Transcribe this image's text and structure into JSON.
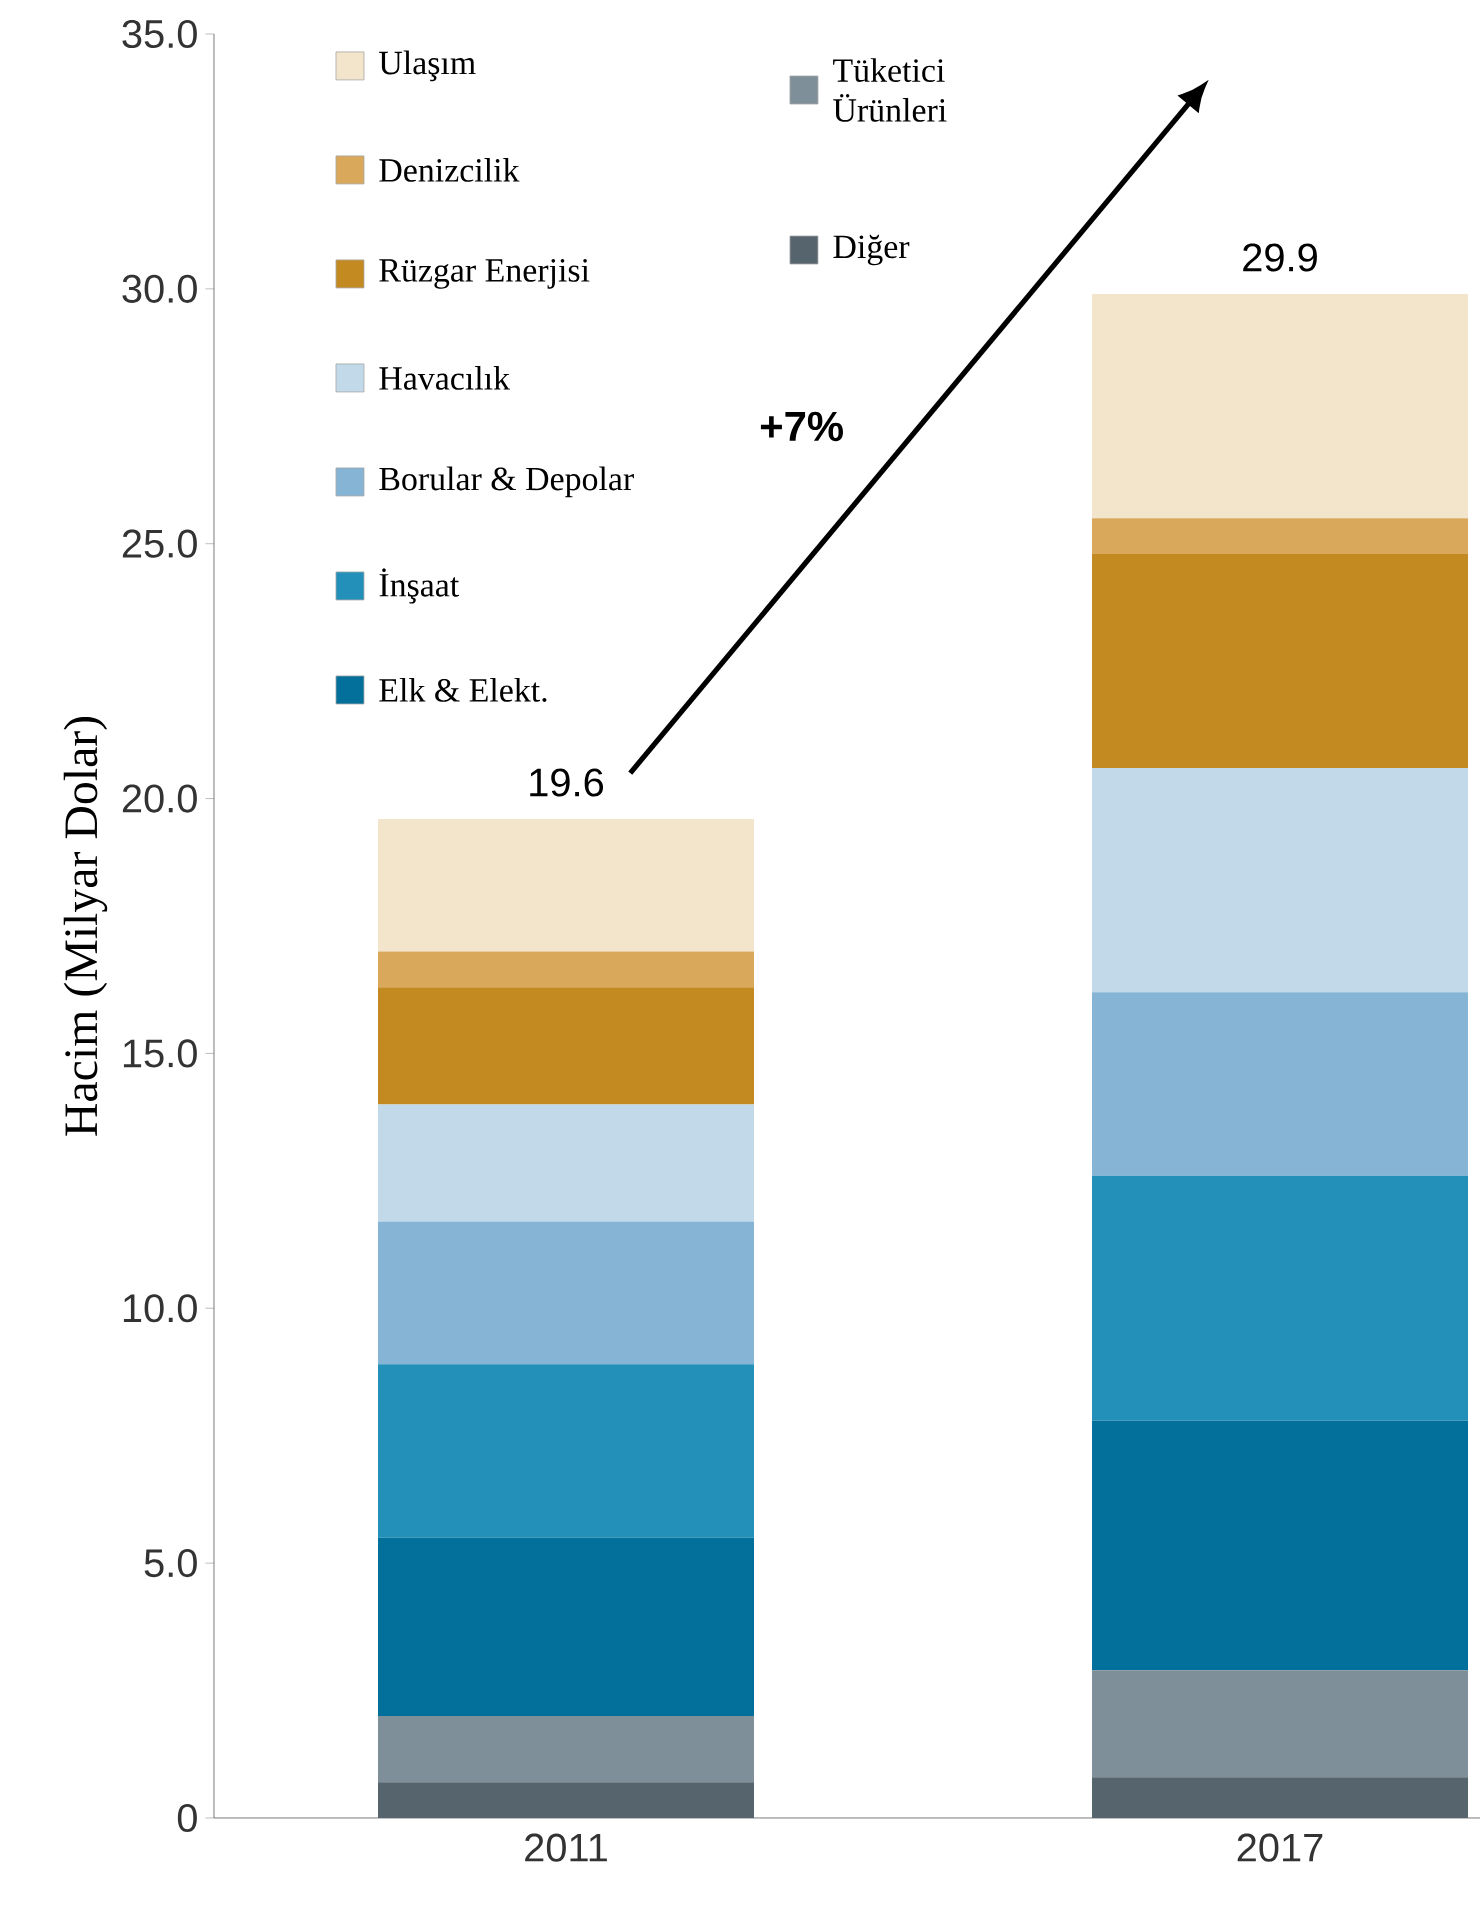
{
  "chart_data": {
    "type": "bar",
    "stacked": true,
    "ylabel": "Hacim (Milyar Dolar)",
    "categories": [
      "2011",
      "2017"
    ],
    "series": [
      {
        "name": "Diğer",
        "color": "#56646d",
        "values": [
          0.7,
          0.8
        ]
      },
      {
        "name": "Tüketici Ürünleri",
        "color": "#7e8f99",
        "values": [
          1.3,
          2.1
        ]
      },
      {
        "name": "Elk & Elekt.",
        "color": "#03709c",
        "values": [
          3.5,
          4.9
        ]
      },
      {
        "name": "İnşaat",
        "color": "#2290b9",
        "values": [
          3.4,
          4.8
        ]
      },
      {
        "name": "Borular & Depolar",
        "color": "#86b4d4",
        "values": [
          2.8,
          3.6
        ]
      },
      {
        "name": "Havacılık",
        "color": "#c2d9ea",
        "values": [
          2.3,
          4.4
        ]
      },
      {
        "name": "Rüzgar Enerjisi",
        "color": "#c48a22",
        "values": [
          2.3,
          4.2
        ]
      },
      {
        "name": "Denizcilik",
        "color": "#d9a85a",
        "values": [
          0.7,
          0.7
        ]
      },
      {
        "name": "Ulaşım",
        "color": "#f3e4cc",
        "values": [
          2.6,
          4.4
        ]
      }
    ],
    "totals": [
      "19.6",
      "29.9"
    ],
    "annotations": [
      "+7%"
    ],
    "ylim": [
      0,
      35
    ],
    "yticks": [
      {
        "value": 0,
        "label": "0"
      },
      {
        "value": 5,
        "label": "5.0"
      },
      {
        "value": 10,
        "label": "10.0"
      },
      {
        "value": 15,
        "label": "15.0"
      },
      {
        "value": 20,
        "label": "20.0"
      },
      {
        "value": 25,
        "label": "25.0"
      },
      {
        "value": 30,
        "label": "30.0"
      },
      {
        "value": 35,
        "label": "35.0"
      }
    ],
    "legend": "top left"
  }
}
